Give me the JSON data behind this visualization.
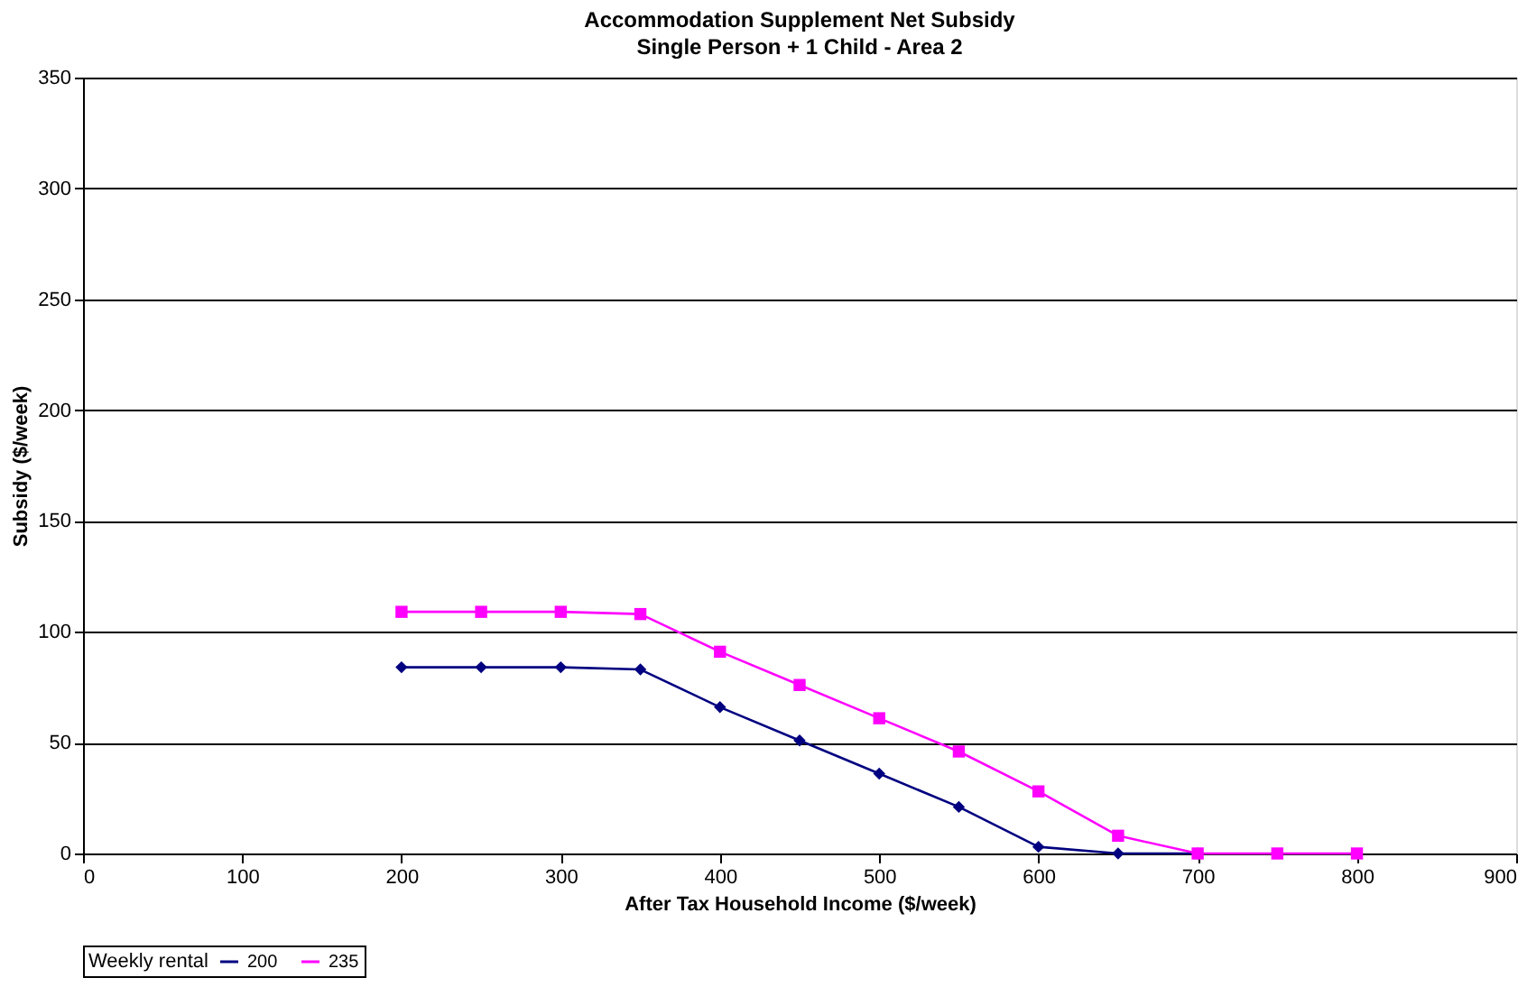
{
  "chart_data": {
    "type": "line",
    "title": "Accommodation Supplement Net Subsidy",
    "subtitle": "Single Person + 1 Child - Area 2",
    "xlabel": "After Tax Household Income ($/week)",
    "ylabel": "Subsidy ($/week)",
    "legend_title": "Weekly rental",
    "x": [
      200,
      250,
      300,
      350,
      400,
      450,
      500,
      550,
      600,
      650,
      700,
      750,
      800
    ],
    "series": [
      {
        "name": "200",
        "color": "#000080",
        "marker": "diamond",
        "values": [
          84,
          84,
          84,
          83,
          66,
          51,
          36,
          21,
          3,
          0,
          0,
          null,
          null
        ]
      },
      {
        "name": "235",
        "color": "#ff00ff",
        "marker": "square",
        "values": [
          109,
          109,
          109,
          108,
          91,
          76,
          61,
          46,
          28,
          8,
          0,
          0,
          0
        ]
      }
    ],
    "xlim": [
      0,
      900
    ],
    "xticks": [
      0,
      100,
      200,
      300,
      400,
      500,
      600,
      700,
      800,
      900
    ],
    "ylim": [
      0,
      350
    ],
    "yticks": [
      0,
      50,
      100,
      150,
      200,
      250,
      300,
      350
    ],
    "grid": "y",
    "legend": "bottom"
  }
}
